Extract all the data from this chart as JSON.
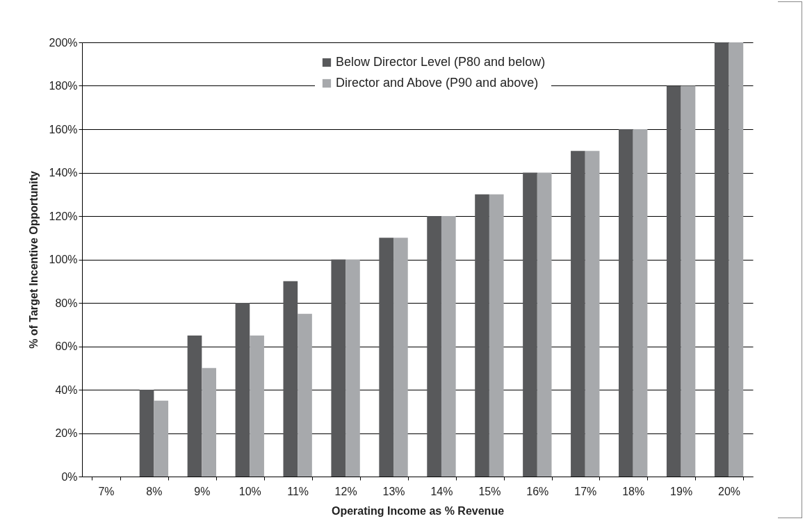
{
  "chart_data": {
    "type": "bar",
    "xlabel": "Operating Income as % Revenue",
    "ylabel": "% of Target Incentive Opportunity",
    "categories": [
      "7%",
      "8%",
      "9%",
      "10%",
      "11%",
      "12%",
      "13%",
      "14%",
      "15%",
      "16%",
      "17%",
      "18%",
      "19%",
      "20%"
    ],
    "series": [
      {
        "name": "Below Director Level (P80 and below)",
        "color": "#58595b",
        "values": [
          0,
          40,
          65,
          80,
          90,
          100,
          110,
          120,
          130,
          140,
          150,
          160,
          180,
          200
        ]
      },
      {
        "name": "Director and Above (P90 and above)",
        "color": "#a7a9ac",
        "values": [
          0,
          35,
          50,
          65,
          75,
          100,
          110,
          120,
          130,
          140,
          150,
          160,
          180,
          200
        ]
      }
    ],
    "ylim": [
      0,
      200
    ],
    "yticks": [
      {
        "value": 0,
        "label": "0%"
      },
      {
        "value": 20,
        "label": "20%"
      },
      {
        "value": 40,
        "label": "40%"
      },
      {
        "value": 60,
        "label": "60%"
      },
      {
        "value": 80,
        "label": "80%"
      },
      {
        "value": 100,
        "label": "100%"
      },
      {
        "value": 120,
        "label": "120%"
      },
      {
        "value": 140,
        "label": "140%"
      },
      {
        "value": 160,
        "label": "160%"
      },
      {
        "value": 180,
        "label": "180%"
      },
      {
        "value": 200,
        "label": "200%"
      }
    ],
    "grid": "y",
    "legend": "top"
  }
}
